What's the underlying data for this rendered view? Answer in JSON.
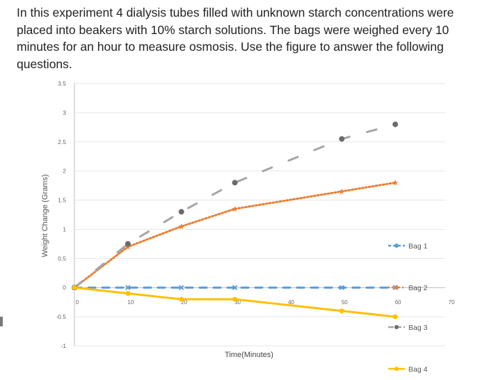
{
  "question": {
    "text": "In this experiment 4 dialysis tubes filled with unknown starch concentrations were placed into beakers with 10% starch solutions. The bags were weighed every 10 minutes for an hour to measure osmosis. Use the figure to answer the following questions."
  },
  "colors": {
    "bag1": "#5b9bd5",
    "bag2": "#ed7d31",
    "bag3": "#a5a5a5",
    "bag4": "#ffc000",
    "gridline": "#e6e6e6",
    "axis": "#bfbfbf"
  },
  "chart_data": {
    "type": "line",
    "title": "",
    "xlabel": "Time(Minutes)",
    "ylabel": "Weight Change (Grams)",
    "xlim": [
      0,
      70
    ],
    "ylim": [
      -1,
      3.5
    ],
    "x_ticks": [
      "0",
      "10",
      "20",
      "30",
      "40",
      "50",
      "60",
      "70"
    ],
    "y_ticks": [
      "-1",
      "-0.5",
      "0",
      "0.5",
      "1",
      "1.5",
      "2",
      "2.5",
      "3",
      "3.5"
    ],
    "grid": true,
    "legend_position": "right",
    "series": [
      {
        "name": "Bag 1",
        "color": "#5b9bd5",
        "points": [
          [
            0,
            0
          ],
          [
            10,
            0
          ],
          [
            20,
            0
          ],
          [
            30,
            0
          ],
          [
            50,
            0
          ],
          [
            60,
            0
          ]
        ]
      },
      {
        "name": "Bag 2",
        "color": "#ed7d31",
        "points": [
          [
            0,
            0
          ],
          [
            10,
            0.7
          ],
          [
            20,
            1.05
          ],
          [
            30,
            1.35
          ],
          [
            50,
            1.65
          ],
          [
            60,
            1.8
          ]
        ]
      },
      {
        "name": "Bag 3",
        "color": "#a5a5a5",
        "points": [
          [
            0,
            0
          ],
          [
            10,
            0.75
          ],
          [
            20,
            1.3
          ],
          [
            30,
            1.8
          ],
          [
            50,
            2.55
          ],
          [
            60,
            2.8
          ]
        ]
      },
      {
        "name": "Bag 4",
        "color": "#ffc000",
        "points": [
          [
            0,
            0
          ],
          [
            10,
            -0.1
          ],
          [
            20,
            -0.2
          ],
          [
            30,
            -0.2
          ],
          [
            50,
            -0.4
          ],
          [
            60,
            -0.5
          ]
        ]
      }
    ]
  }
}
